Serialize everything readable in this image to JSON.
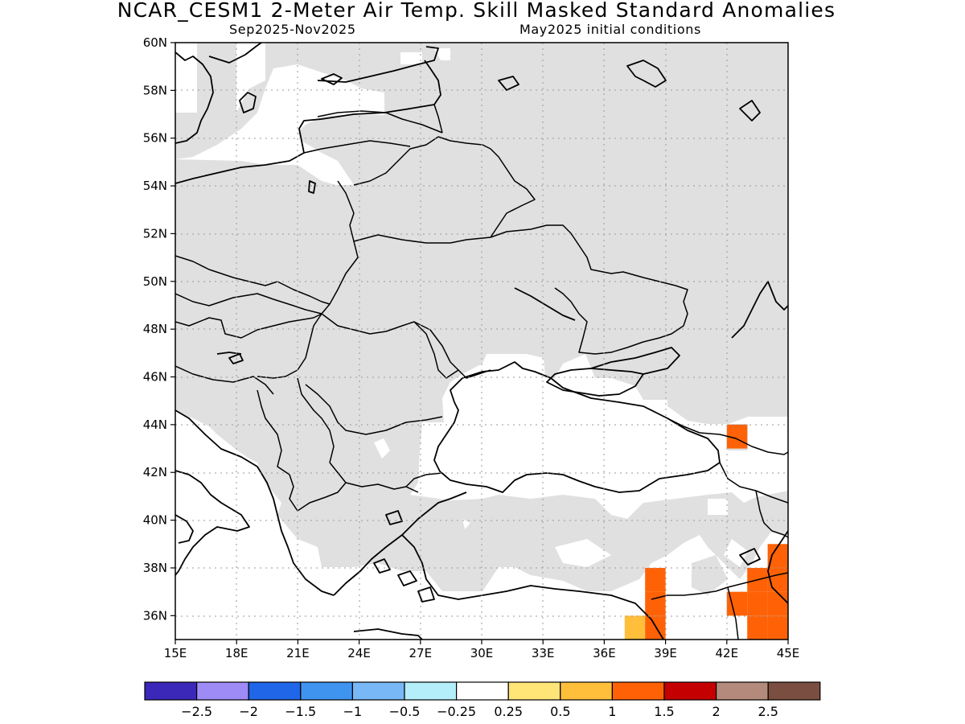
{
  "title": "NCAR_CESM1 2-Meter Air Temp. Skill Masked Standard Anomalies",
  "subtitle_left": "Sep2025-Nov2025",
  "subtitle_right": "May2025 initial conditions",
  "map": {
    "lon_range": [
      15,
      45
    ],
    "lat_range": [
      35,
      60
    ],
    "lon_ticks": [
      {
        "value": 15,
        "label": "15E"
      },
      {
        "value": 18,
        "label": "18E"
      },
      {
        "value": 21,
        "label": "21E"
      },
      {
        "value": 24,
        "label": "24E"
      },
      {
        "value": 27,
        "label": "27E"
      },
      {
        "value": 30,
        "label": "30E"
      },
      {
        "value": 33,
        "label": "33E"
      },
      {
        "value": 36,
        "label": "36E"
      },
      {
        "value": 39,
        "label": "39E"
      },
      {
        "value": 42,
        "label": "42E"
      },
      {
        "value": 45,
        "label": "45E"
      }
    ],
    "lat_ticks": [
      {
        "value": 36,
        "label": "36N"
      },
      {
        "value": 38,
        "label": "38N"
      },
      {
        "value": 40,
        "label": "40N"
      },
      {
        "value": 42,
        "label": "42N"
      },
      {
        "value": 44,
        "label": "44N"
      },
      {
        "value": 46,
        "label": "46N"
      },
      {
        "value": 48,
        "label": "48N"
      },
      {
        "value": 50,
        "label": "50N"
      },
      {
        "value": 52,
        "label": "52N"
      },
      {
        "value": 54,
        "label": "54N"
      },
      {
        "value": 56,
        "label": "56N"
      },
      {
        "value": 58,
        "label": "58N"
      },
      {
        "value": 60,
        "label": "60N"
      }
    ],
    "grid": true,
    "mask_color": "#e0e0e0",
    "anomaly_cells": [
      {
        "lon": 42.5,
        "lat": 43.5,
        "value": 1.25
      },
      {
        "lon": 38.5,
        "lat": 37.5,
        "value": 1.25
      },
      {
        "lon": 38.5,
        "lat": 36.5,
        "value": 1.25
      },
      {
        "lon": 37.5,
        "lat": 35.5,
        "value": 0.75
      },
      {
        "lon": 38.5,
        "lat": 35.5,
        "value": 1.25
      },
      {
        "lon": 44.5,
        "lat": 38.5,
        "value": 1.25
      },
      {
        "lon": 43.5,
        "lat": 37.5,
        "value": 1.25
      },
      {
        "lon": 44.5,
        "lat": 37.5,
        "value": 1.25
      },
      {
        "lon": 42.5,
        "lat": 36.5,
        "value": 1.25
      },
      {
        "lon": 43.5,
        "lat": 36.5,
        "value": 1.25
      },
      {
        "lon": 44.5,
        "lat": 36.5,
        "value": 1.25
      },
      {
        "lon": 43.5,
        "lat": 35.5,
        "value": 1.25
      },
      {
        "lon": 44.5,
        "lat": 35.5,
        "value": 1.25
      }
    ]
  },
  "colorbar": {
    "colors": [
      "#3b27b8",
      "#9e8bf5",
      "#1f66e8",
      "#3f94f0",
      "#78b8f7",
      "#b3eefa",
      "#ffffff",
      "#ffe477",
      "#ffbf3b",
      "#ff6206",
      "#c40000",
      "#b38a7b",
      "#7a4e40"
    ],
    "labels": [
      "-2.5",
      "-2",
      "-1.5",
      "-1",
      "-0.5",
      "-0.25",
      "0.25",
      "0.5",
      "1",
      "1.5",
      "2",
      "2.5"
    ]
  }
}
